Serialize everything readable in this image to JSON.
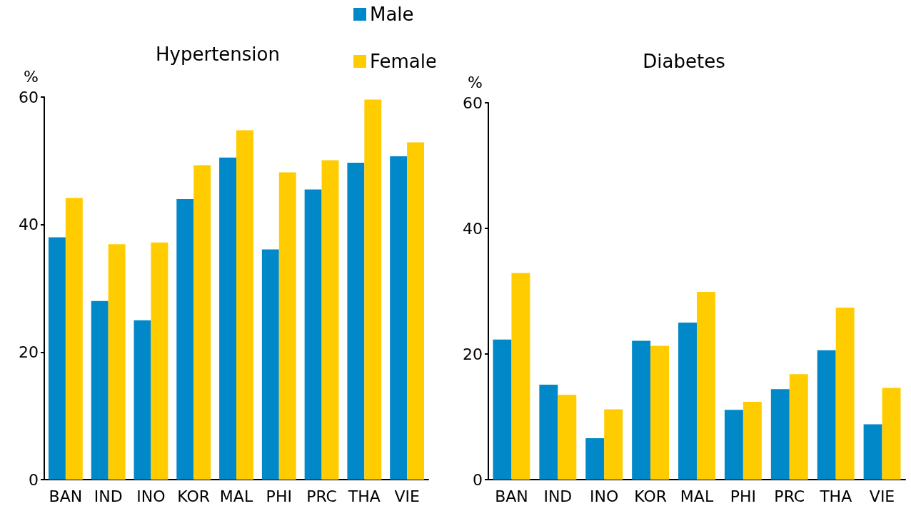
{
  "chart_data": [
    {
      "type": "bar",
      "title": "Hypertension",
      "ylabel": "%",
      "categories": [
        "BAN",
        "IND",
        "INO",
        "KOR",
        "MAL",
        "PHI",
        "PRC",
        "THA",
        "VIE"
      ],
      "series": [
        {
          "name": "Male",
          "color": "#0088c8",
          "values": [
            38.0,
            28.0,
            25.0,
            44.0,
            50.5,
            36.1,
            45.5,
            49.7,
            50.7
          ]
        },
        {
          "name": "Female",
          "color": "#ffcc00",
          "values": [
            44.2,
            36.9,
            37.2,
            49.3,
            54.8,
            48.2,
            50.1,
            59.6,
            52.9
          ]
        }
      ],
      "ylim": [
        0,
        60
      ],
      "yticks": [
        0,
        20,
        40,
        60
      ],
      "grid": false,
      "legend": "top"
    },
    {
      "type": "bar",
      "title": "Diabetes",
      "ylabel": "%",
      "categories": [
        "BAN",
        "IND",
        "INO",
        "KOR",
        "MAL",
        "PHI",
        "PRC",
        "THA",
        "VIE"
      ],
      "series": [
        {
          "color": "#0088c8",
          "values": [
            22.3,
            15.1,
            6.6,
            22.1,
            25.0,
            11.1,
            14.4,
            20.6,
            8.8
          ]
        },
        {
          "color": "#ffcc00",
          "values": [
            32.9,
            13.5,
            11.2,
            21.3,
            29.9,
            12.4,
            16.8,
            27.4,
            14.6
          ]
        }
      ],
      "ylim": [
        0,
        60
      ],
      "yticks": [
        0,
        20,
        40,
        60
      ],
      "grid": false
    }
  ]
}
